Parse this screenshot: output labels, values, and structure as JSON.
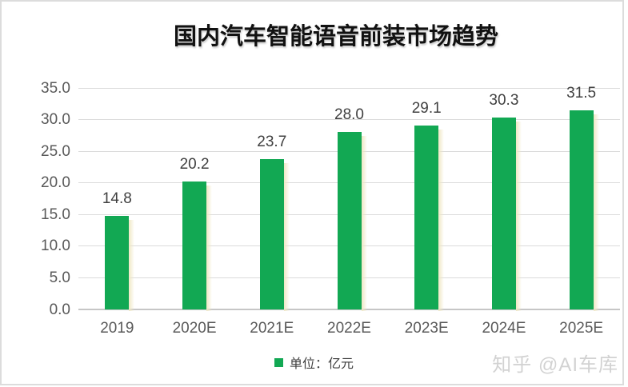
{
  "title": "国内汽车智能语音前装市场趋势",
  "chart_data": {
    "type": "bar",
    "title": "国内汽车智能语音前装市场趋势",
    "categories": [
      "2019",
      "2020E",
      "2021E",
      "2022E",
      "2023E",
      "2024E",
      "2025E"
    ],
    "values": [
      14.8,
      20.2,
      23.7,
      28.0,
      29.1,
      30.3,
      31.5
    ],
    "value_labels": [
      "14.8",
      "20.2",
      "23.7",
      "28.0",
      "29.1",
      "30.3",
      "31.5"
    ],
    "xlabel": "",
    "ylabel": "",
    "ylim": [
      0,
      35
    ],
    "ytick_step": 5,
    "ytick_labels": [
      "0.0",
      "5.0",
      "10.0",
      "15.0",
      "20.0",
      "25.0",
      "30.0",
      "35.0"
    ],
    "grid": true,
    "legend": {
      "label": "单位：亿元",
      "position": "bottom"
    },
    "colors": {
      "bar": "#12a853",
      "bar_shadow": "#efe7c4",
      "grid": "#dbdbdb",
      "axis": "#c6c6c6",
      "tick_label": "#595959",
      "value_label": "#404040",
      "title": "#111111"
    }
  },
  "watermark": "知乎 @AI车库"
}
